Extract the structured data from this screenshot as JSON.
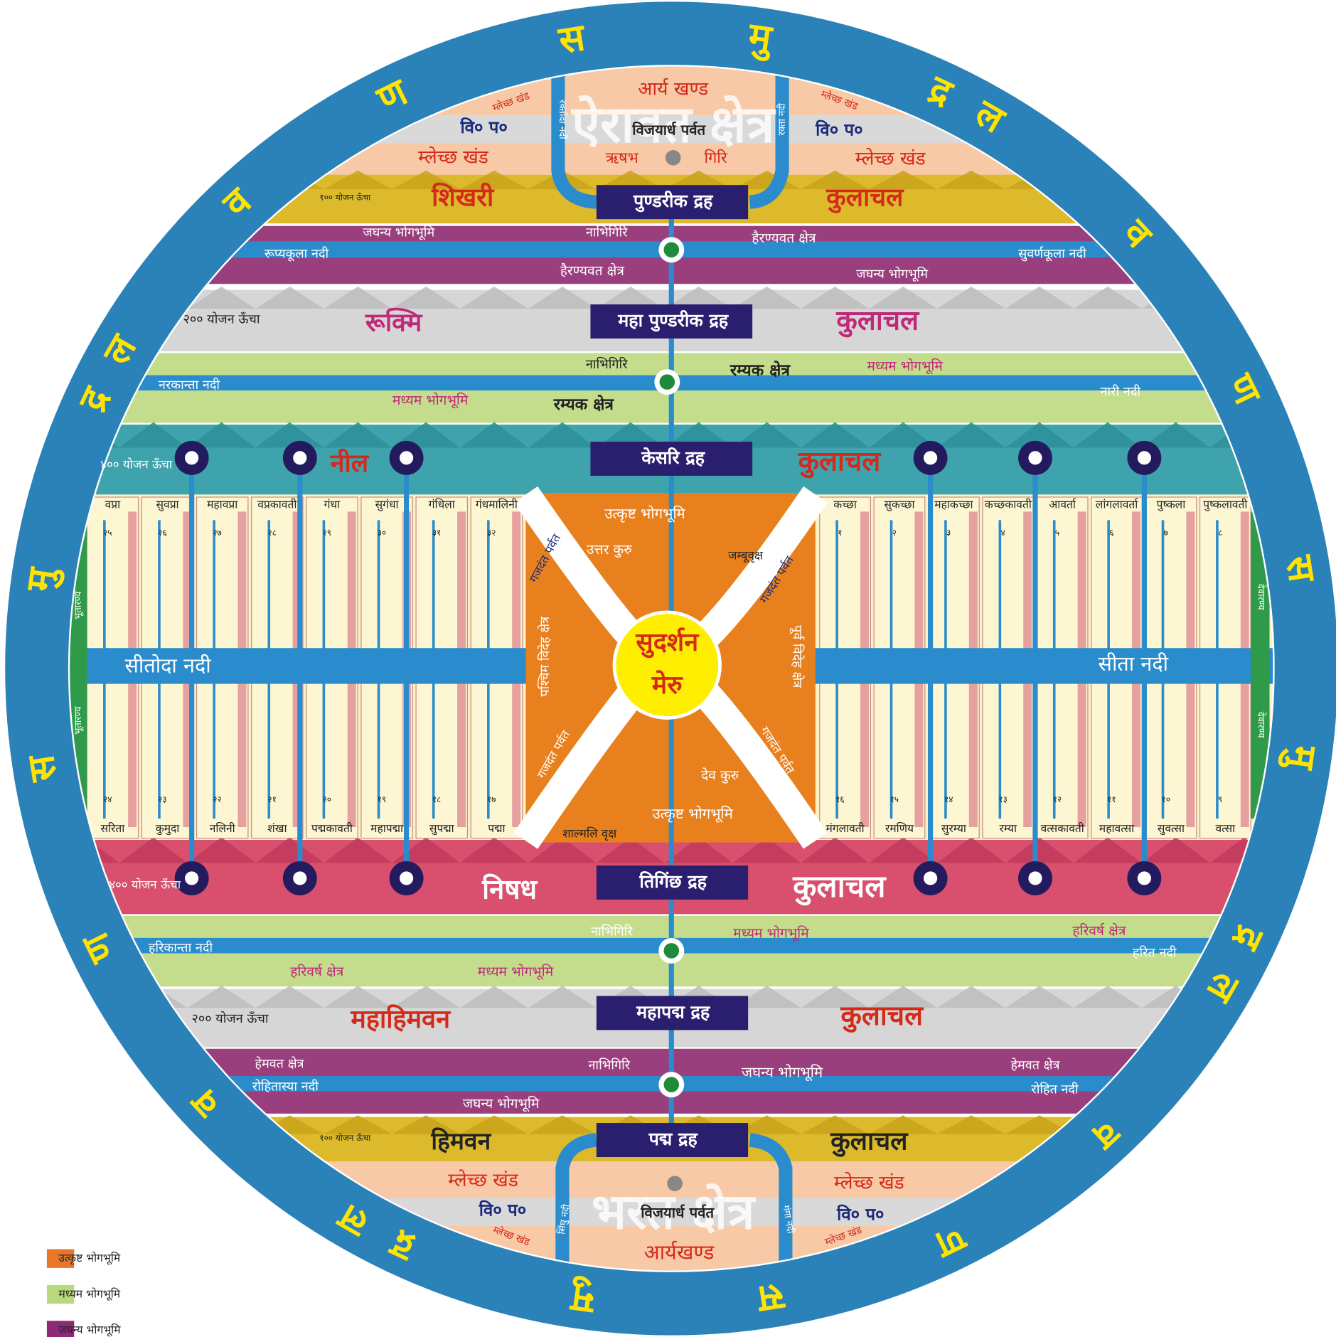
{
  "ocean": {
    "letters": [
      "ल",
      "व",
      "ण",
      "स",
      "मु",
      "द्र"
    ]
  },
  "hrads": [
    "पुण्डरीक द्रह",
    "महा पुण्डरीक द्रह",
    "केसरि द्रह",
    "तिगिंछ द्रह",
    "महापद्म द्रह",
    "पद्म द्रह"
  ],
  "labels": [
    "ऐरावत क्षेत्र",
    "आर्य खण्ड",
    "म्लेच्छ खंड",
    "म्लेच्छ खंड",
    "विजयार्ध पर्वत",
    "वि० प०",
    "वि० प०",
    "म्लेच्छ खंड",
    "म्लेच्छ खंड",
    "ऋषभ",
    "गिरि",
    "रक्तोदा नदी",
    "रक्ता नदी",
    "शिखरी",
    "कुलाचल",
    "१०० योजन ऊँचा",
    "जघन्य भोगभूमि",
    "नाभिगिरि",
    "हैरण्यवत क्षेत्र",
    "रूप्यकूला नदी",
    "सुवर्णकूला नदी",
    "हैरण्यवत क्षेत्र",
    "जघन्य भोगभूमि",
    "२०० योजन ऊँचा",
    "रूक्मि",
    "कुलाचल",
    "नाभिगिरि",
    "रम्यक क्षेत्र",
    "मध्यम भोगभूमि",
    "नरकान्ता नदी",
    "नारी नदी",
    "मध्यम भोगभूमि",
    "रम्यक क्षेत्र",
    "४०० योजन ऊँचा",
    "नील",
    "कुलाचल",
    "उत्कृष्ट भोगभूमि",
    "उत्तर कुरु",
    "जम्बूवृक्ष",
    "गजदंत पर्वत",
    "गजदंत पर्वत",
    "पश्चिम विदेह क्षेत्र",
    "पूर्व विदेह क्षेत्र",
    "सुदर्शन",
    "मेरु",
    "सीतोदा नदी",
    "सीता नदी",
    "गजदंत पर्वत",
    "गजदंत पर्वत",
    "देव कुरु",
    "उत्कृष्ट भोगभूमि",
    "शाल्मलि वृक्ष",
    "भूतारण्य",
    "भूतारण्य",
    "देवारण्य",
    "देवारण्य",
    "४०० योजन ऊँचा",
    "निषध",
    "कुलाचल",
    "नाभिगिरि",
    "मध्यम भोगभूमि",
    "हरिवर्ष क्षेत्र",
    "हरिकान्ता नदी",
    "हरित नदी",
    "हरिवर्ष क्षेत्र",
    "मध्यम भोगभूमि",
    "२०० योजन ऊँचा",
    "महाहिमवन",
    "कुलाचल",
    "हेमवत क्षेत्र",
    "नाभिगिरि",
    "जघन्य भोगभूमि",
    "हेमवत क्षेत्र",
    "रोहितास्या नदी",
    "रोहित नदी",
    "जघन्य भोगभूमि",
    "१०० योजन ऊँचा",
    "हिमवन",
    "कुलाचल",
    "भरत क्षेत्र",
    "म्लेच्छ खंड",
    "म्लेच्छ खंड",
    "वि० प०",
    "विजयार्ध पर्वत",
    "वि० प०",
    "म्लेच्छ खंड",
    "म्लेच्छ खंड",
    "सिंधु नदी",
    "गंगा नदी",
    "आर्यखण्ड"
  ],
  "videha": {
    "top_left": [
      {
        "name": "वप्रा",
        "number": "२५"
      },
      {
        "name": "सुवप्रा",
        "number": "२६"
      },
      {
        "name": "महावप्रा",
        "number": "२७"
      },
      {
        "name": "वप्रकावती",
        "number": "२८"
      },
      {
        "name": "गंधा",
        "number": "२९"
      },
      {
        "name": "सुगंधा",
        "number": "३०"
      },
      {
        "name": "गंधिला",
        "number": "३१"
      },
      {
        "name": "गंधमालिनी",
        "number": "३२"
      }
    ],
    "top_right": [
      {
        "name": "कच्छा",
        "number": "१"
      },
      {
        "name": "सुकच्छा",
        "number": "२"
      },
      {
        "name": "महाकच्छा",
        "number": "३"
      },
      {
        "name": "कच्छकावती",
        "number": "४"
      },
      {
        "name": "आवर्ता",
        "number": "५"
      },
      {
        "name": "लांगलावर्ता",
        "number": "६"
      },
      {
        "name": "पुष्कला",
        "number": "७"
      },
      {
        "name": "पुष्कलावती",
        "number": "८"
      }
    ],
    "bottom_left": [
      {
        "name": "सरिता",
        "number": "२४"
      },
      {
        "name": "कुमुदा",
        "number": "२३"
      },
      {
        "name": "नलिनी",
        "number": "२२"
      },
      {
        "name": "शंखा",
        "number": "२१"
      },
      {
        "name": "पद्मकावती",
        "number": "२०"
      },
      {
        "name": "महापद्मा",
        "number": "१९"
      },
      {
        "name": "सुपद्मा",
        "number": "१८"
      },
      {
        "name": "पद्मा",
        "number": "१७"
      }
    ],
    "bottom_right": [
      {
        "name": "मंगलावती",
        "number": "१६"
      },
      {
        "name": "रमणिय",
        "number": "१५"
      },
      {
        "name": "सुरम्या",
        "number": "१४"
      },
      {
        "name": "रम्या",
        "number": "१३"
      },
      {
        "name": "वत्सकावती",
        "number": "१२"
      },
      {
        "name": "महावत्सा",
        "number": "११"
      },
      {
        "name": "सुवत्सा",
        "number": "१०"
      },
      {
        "name": "वत्सा",
        "number": "९"
      }
    ]
  },
  "legend": [
    {
      "label": "उत्कृष्ट भोगभूमि",
      "color": "#e8772a"
    },
    {
      "label": "मध्यम भोगभूमि",
      "color": "#b9d97e"
    },
    {
      "label": "जघन्य भोगभूमि",
      "color": "#8c2a78"
    }
  ]
}
